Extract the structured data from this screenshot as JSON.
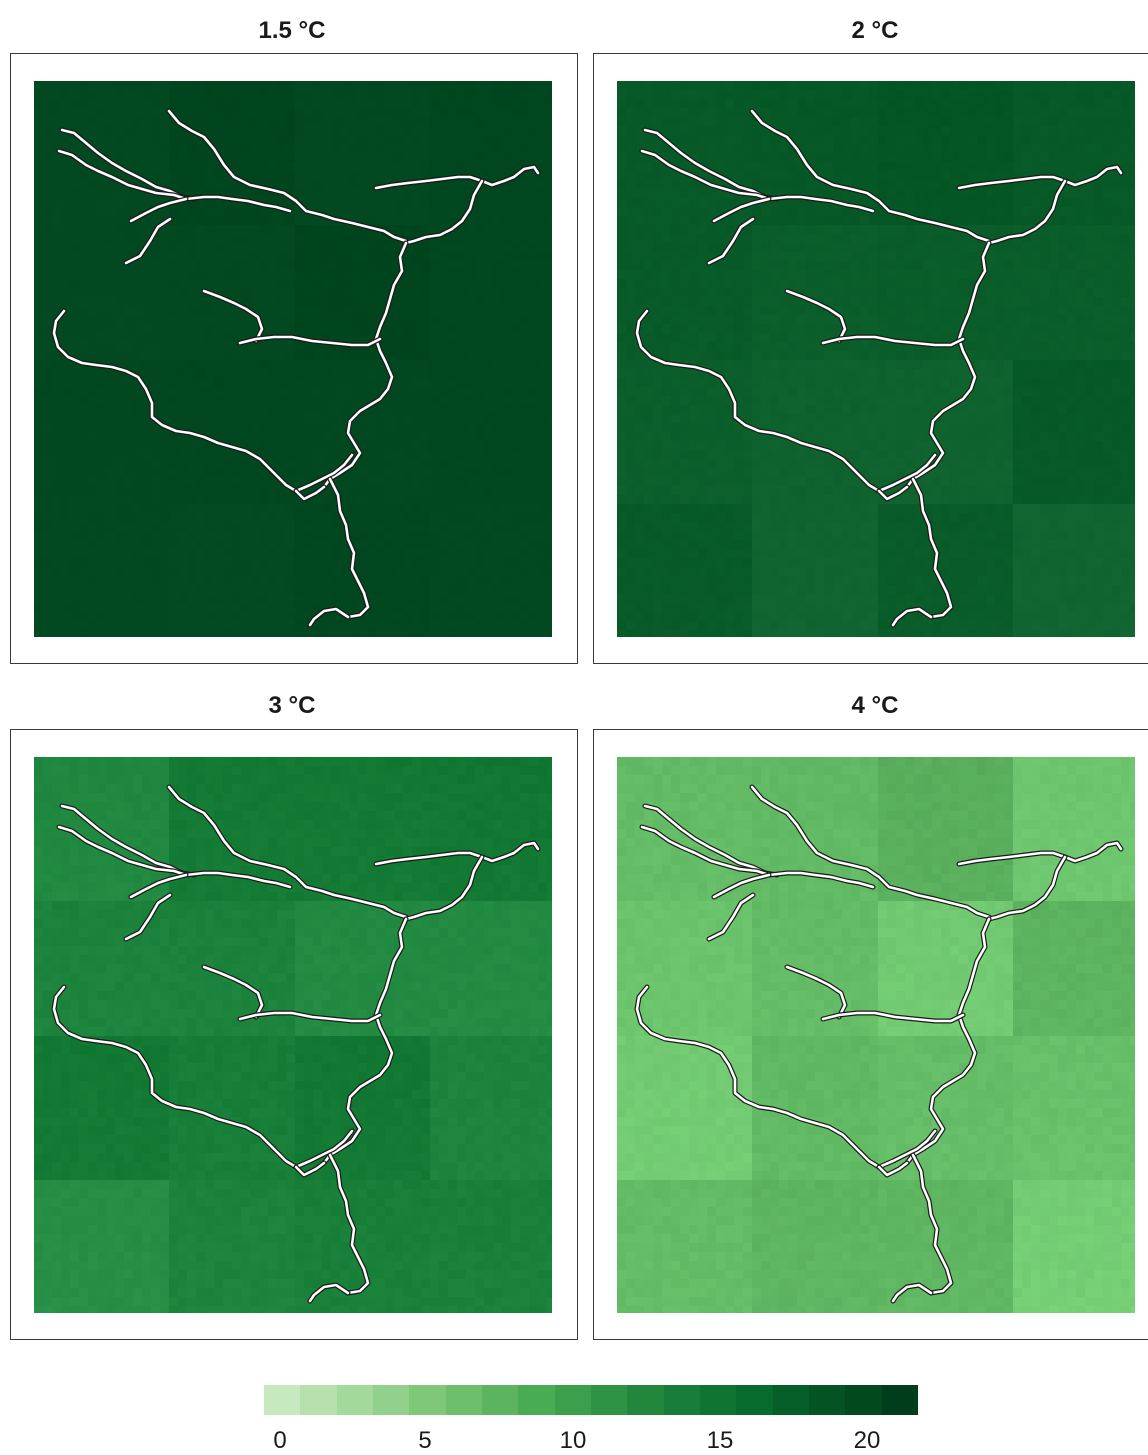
{
  "panels": [
    {
      "title": "1.5 °C",
      "base": "#00461f",
      "tint": 0.02
    },
    {
      "title": "2 °C",
      "base": "#075a27",
      "tint": 0.05
    },
    {
      "title": "3 °C",
      "base": "#147b35",
      "tint": 0.1
    },
    {
      "title": "4 °C",
      "base": "#61b863",
      "tint": 0.12
    }
  ],
  "legend": {
    "ticks": [
      "0",
      "5",
      "10",
      "15",
      "20"
    ],
    "colors": [
      "#c7e9c0",
      "#b6e1ae",
      "#a4d99c",
      "#92d18b",
      "#7fc87a",
      "#6dbf6b",
      "#5cb55e",
      "#4aab55",
      "#3c9f4c",
      "#2f9345",
      "#22863d",
      "#177d38",
      "#0d7432",
      "#076b2d",
      "#065f28",
      "#045423",
      "#02491e",
      "#003d1a"
    ]
  },
  "colors": {
    "river_outer": "#1a1a1a",
    "river_inner": "#ffffff"
  }
}
